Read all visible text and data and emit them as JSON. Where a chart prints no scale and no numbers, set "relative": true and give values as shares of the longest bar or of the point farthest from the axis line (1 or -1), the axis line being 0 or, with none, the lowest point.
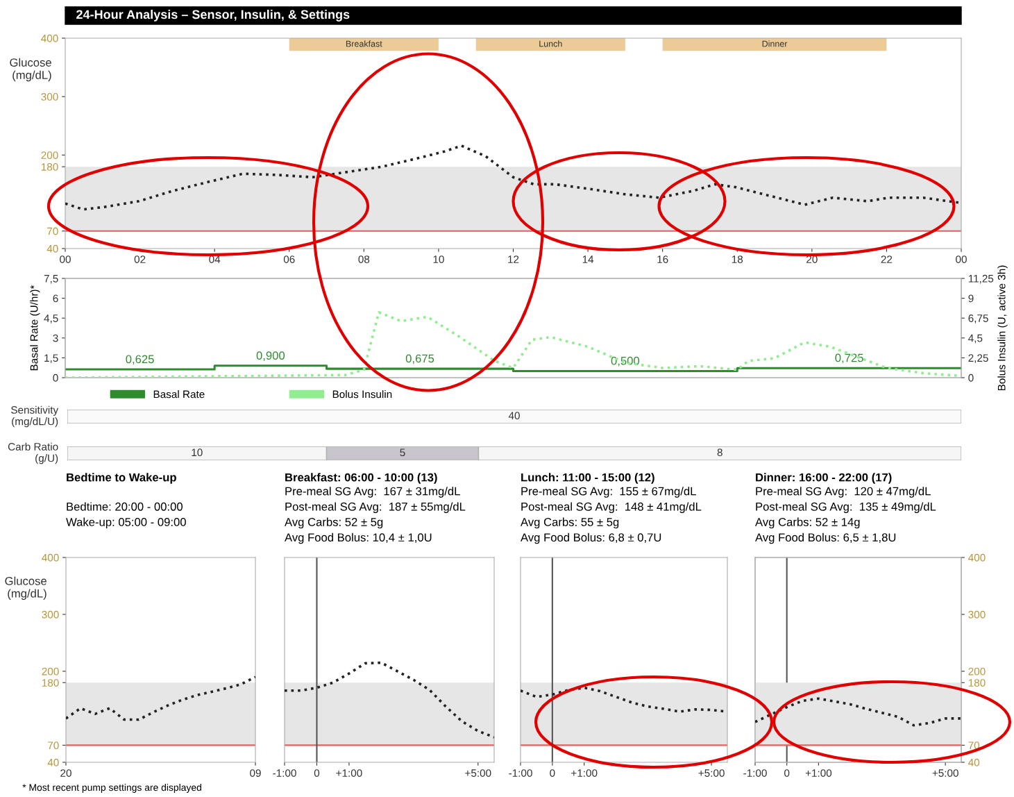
{
  "chart_data": [
    {
      "type": "line",
      "title": "24-Hour Analysis – Sensor, Insulin, & Settings",
      "ylabel": "Glucose\n(mg/dL)",
      "xlim": [
        0,
        24
      ],
      "xticks": [
        {
          "value": 0,
          "label": "00"
        },
        {
          "value": 2,
          "label": "02"
        },
        {
          "value": 4,
          "label": "04"
        },
        {
          "value": 6,
          "label": "06"
        },
        {
          "value": 8,
          "label": "08"
        },
        {
          "value": 10,
          "label": "10"
        },
        {
          "value": 12,
          "label": "12"
        },
        {
          "value": 14,
          "label": "14"
        },
        {
          "value": 16,
          "label": "16"
        },
        {
          "value": 18,
          "label": "18"
        },
        {
          "value": 20,
          "label": "20"
        },
        {
          "value": 22,
          "label": "22"
        },
        {
          "value": 24,
          "label": "00"
        }
      ],
      "ylim": [
        40,
        400
      ],
      "yticks": [
        40,
        70,
        180,
        200,
        300,
        400
      ],
      "line_style": "dotted",
      "x": [
        0,
        0.48,
        1.04,
        1.97,
        2.9,
        3.83,
        4.76,
        5.69,
        6.62,
        7.55,
        8.48,
        9.41,
        10.15,
        10.61,
        11.26,
        12.0,
        12.55,
        13.12,
        14.05,
        14.98,
        15.91,
        16.84,
        17.4,
        17.96,
        18.7,
        19.81,
        20.56,
        21.49,
        22.05,
        22.98,
        24
      ],
      "series": [
        {
          "color": "#222222",
          "values": [
            117,
            107,
            111,
            121,
            139,
            154,
            168,
            166,
            162,
            171,
            180,
            194,
            206,
            216,
            198,
            162,
            150,
            150,
            142,
            133,
            127,
            139,
            150,
            145,
            133,
            115,
            127,
            121,
            127,
            127,
            118
          ]
        }
      ],
      "bands": [
        {
          "axis": "y",
          "from": 70,
          "to": 180,
          "color": "#e6e6e6"
        },
        {
          "axis": "x",
          "from": 6,
          "to": 10,
          "label": "Breakfast",
          "color": "#eccb97"
        },
        {
          "axis": "x",
          "from": 11,
          "to": 15,
          "label": "Lunch",
          "color": "#eccb97"
        },
        {
          "axis": "x",
          "from": 16,
          "to": 22,
          "label": "Dinner",
          "color": "#eccb97"
        }
      ],
      "ref_lines": [
        {
          "axis": "y",
          "value": 70,
          "color": "#e06060"
        }
      ]
    },
    {
      "type": "step",
      "ylabel": "Basal Rate (U/hr)*",
      "y2label": "Bolus Insulin (U, active 3h)",
      "xlim": [
        0,
        24
      ],
      "ylim": [
        0,
        7.5
      ],
      "yticks": [
        0,
        {
          "value": 1.5,
          "label": "1,5"
        },
        3,
        {
          "value": 4.5,
          "label": "4,5"
        },
        6,
        {
          "value": 7.5,
          "label": "7,5"
        }
      ],
      "y2lim": [
        0,
        11.25
      ],
      "y2ticks": [
        0,
        {
          "value": 2.25,
          "label": "2,25"
        },
        {
          "value": 4.5,
          "label": "4,5"
        },
        {
          "value": 6.75,
          "label": "6,75"
        },
        9,
        {
          "value": 11.25,
          "label": "11,25"
        }
      ],
      "tick_labels": "y",
      "legend": "bottom left",
      "annotations": [
        {
          "text": "0,625",
          "x": 2,
          "y": 0.625
        },
        {
          "text": "0,900",
          "x": 5.5,
          "y": 0.9
        },
        {
          "text": "0,675",
          "x": 9.5,
          "y": 0.675
        },
        {
          "text": "0,500",
          "x": 15,
          "y": 0.5
        },
        {
          "text": "0,725",
          "x": 21,
          "y": 0.725
        }
      ],
      "series": [
        {
          "name": "Basal Rate",
          "type": "step",
          "color": "#2e8b2e",
          "line_style": "solid",
          "x": [
            0,
            4,
            7,
            12,
            18,
            24
          ],
          "values": [
            0.625,
            0.9,
            0.675,
            0.5,
            0.725,
            0.725
          ]
        },
        {
          "name": "Bolus Insulin",
          "type": "line",
          "axis": "y2",
          "color": "#90ee90",
          "line_style": "dotted",
          "x": [
            0,
            7.5,
            8,
            8.4,
            9,
            9.7,
            10.5,
            11.5,
            12,
            12.5,
            13,
            14,
            15,
            16,
            17,
            18,
            18.3,
            19,
            19.8,
            20.5,
            21.5,
            22,
            23,
            24
          ],
          "values": [
            0,
            0.3,
            0.9,
            7.4,
            6.4,
            6.9,
            4.8,
            1.9,
            1.1,
            4.3,
            4.6,
            3.5,
            1.7,
            1.1,
            1.3,
            0.9,
            1.9,
            2.2,
            4.0,
            3.5,
            1.9,
            1.1,
            0.5,
            0.2
          ]
        }
      ]
    },
    {
      "type": "other",
      "ylabel": "Sensitivity\n(mg/dL/U)",
      "annotations": [
        "40"
      ]
    },
    {
      "type": "bar",
      "orientation": "horizontal",
      "stacked": true,
      "relative": true,
      "ylabel": "Carb Ratio\n(g/U)",
      "categories": [
        null
      ],
      "series": [
        {
          "name": "10",
          "color": "#f6f6f6",
          "values": [
            0.29
          ]
        },
        {
          "name": "5",
          "color": "#c8c6cc",
          "values": [
            0.17
          ]
        },
        {
          "name": "8",
          "color": "#f6f6f6",
          "values": [
            0.54
          ]
        }
      ]
    },
    {
      "type": "line",
      "title": "Bedtime to Wake-up",
      "subtitle": "\nBedtime: 20:00 - 00:00\nWake-up: 05:00 - 09:00",
      "ylabel": "Glucose\n(mg/dL)",
      "annotations": [
        "* Most recent pump settings are displayed"
      ],
      "categories": [
        "20",
        null,
        null,
        null,
        null,
        null,
        null,
        null,
        null,
        null,
        null,
        null,
        null,
        "09"
      ],
      "ylim": [
        40,
        400
      ],
      "yticks": [
        40,
        70,
        180,
        200,
        300,
        400
      ],
      "line_style": "dotted",
      "series": [
        {
          "color": "#222222",
          "values": [
            117,
            135,
            125,
            135,
            115,
            115,
            128,
            140,
            150,
            158,
            164,
            170,
            177,
            190
          ]
        }
      ],
      "bands": [
        {
          "axis": "y",
          "from": 70,
          "to": 180,
          "color": "#e6e6e6"
        }
      ],
      "ref_lines": [
        {
          "axis": "y",
          "value": 70,
          "color": "#e06060"
        }
      ]
    },
    {
      "type": "line",
      "title": "Breakfast: 06:00 - 10:00 (13)",
      "subtitle": "Pre-meal SG Avg:  167 ± 31mg/dL\nPost-meal SG Avg:  187 ± 55mg/dL\nAvg Carbs: 52 ± 5g\nAvg Food Bolus: 10,4 ± 1,0U",
      "categories": [
        "-1:00",
        null,
        "0",
        null,
        "+1:00",
        null,
        null,
        null,
        null,
        null,
        null,
        null,
        "+5:00",
        null
      ],
      "ylim": [
        40,
        400
      ],
      "tick_labels": "x",
      "line_style": "dotted",
      "series": [
        {
          "color": "#222222",
          "values": [
            166,
            166,
            171,
            180,
            196,
            214,
            215,
            200,
            185,
            167,
            138,
            112,
            95,
            84
          ]
        }
      ],
      "bands": [
        {
          "axis": "y",
          "from": 70,
          "to": 180,
          "color": "#e6e6e6"
        }
      ],
      "ref_lines": [
        {
          "axis": "y",
          "value": 70,
          "color": "#e06060"
        },
        {
          "axis": "x",
          "value": "0",
          "color": "#555555"
        }
      ]
    },
    {
      "type": "line",
      "title": "Lunch: 11:00 - 15:00 (12)",
      "subtitle": "Pre-meal SG Avg:  155 ± 67mg/dL\nPost-meal SG Avg:  148 ± 41mg/dL\nAvg Carbs: 55 ± 5g\nAvg Food Bolus: 6,8 ± 0,7U",
      "categories": [
        "-1:00",
        null,
        "0",
        null,
        "+1:00",
        null,
        null,
        null,
        null,
        null,
        null,
        null,
        "+5:00",
        null
      ],
      "ylim": [
        40,
        400
      ],
      "tick_labels": "x",
      "line_style": "dotted",
      "series": [
        {
          "color": "#222222",
          "values": [
            166,
            155,
            159,
            167,
            171,
            165,
            155,
            145,
            138,
            134,
            129,
            133,
            132,
            129
          ]
        }
      ],
      "bands": [
        {
          "axis": "y",
          "from": 70,
          "to": 180,
          "color": "#e6e6e6"
        }
      ],
      "ref_lines": [
        {
          "axis": "y",
          "value": 70,
          "color": "#e06060"
        },
        {
          "axis": "x",
          "value": "0",
          "color": "#555555"
        }
      ]
    },
    {
      "type": "line",
      "title": "Dinner: 16:00 - 22:00 (17)",
      "subtitle": "Pre-meal SG Avg:  120 ± 47mg/dL\nPost-meal SG Avg:  135 ± 49mg/dL\nAvg Carbs: 52 ± 14g\nAvg Food Bolus: 6,5 ± 1,8U",
      "categories": [
        "-1:00",
        null,
        "0",
        null,
        "+1:00",
        null,
        null,
        null,
        null,
        null,
        null,
        null,
        "+5:00",
        null
      ],
      "y2lim": [
        40,
        400
      ],
      "y2ticks": [
        40,
        70,
        180,
        200,
        300,
        400
      ],
      "line_style": "dotted",
      "series": [
        {
          "color": "#222222",
          "axis": "y2",
          "values": [
            111,
            124,
            137,
            148,
            152,
            147,
            142,
            134,
            127,
            120,
            105,
            109,
            117,
            117
          ]
        }
      ],
      "bands": [
        {
          "axis": "y2",
          "from": 70,
          "to": 180,
          "color": "#e6e6e6"
        }
      ],
      "ref_lines": [
        {
          "axis": "y2",
          "value": 70,
          "color": "#e06060"
        },
        {
          "axis": "x",
          "value": "0",
          "color": "#555555"
        }
      ]
    }
  ]
}
